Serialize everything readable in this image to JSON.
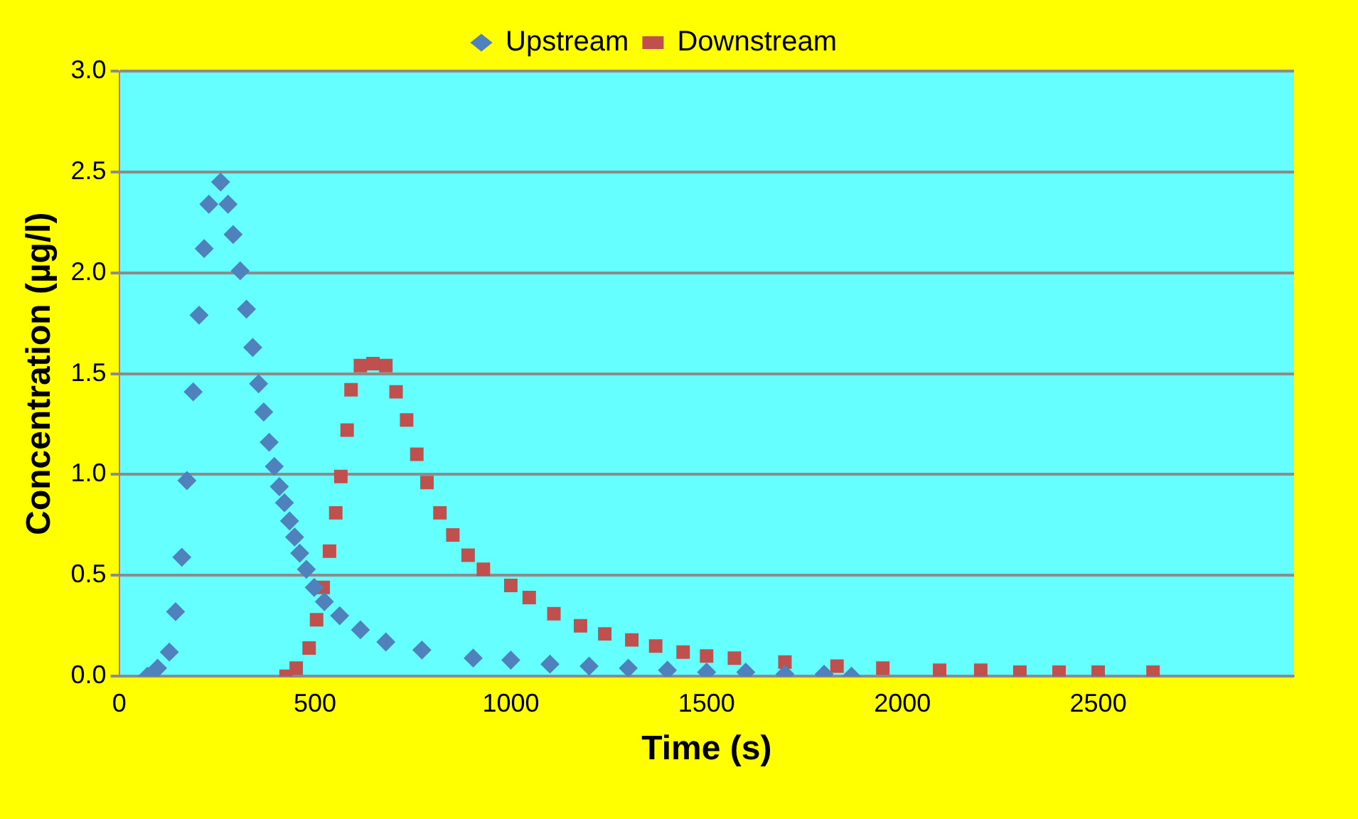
{
  "chart_data": {
    "type": "scatter",
    "xlabel": "Time (s)",
    "ylabel": "Concentration (µg/l)",
    "xlim": [
      0,
      3000
    ],
    "xticks": [
      0,
      500,
      1000,
      1500,
      2000,
      2500
    ],
    "ylim": [
      0,
      3
    ],
    "yticks": [
      {
        "value": 0,
        "label": "0.0"
      },
      0.5,
      {
        "value": 1,
        "label": "1.0"
      },
      1.5,
      {
        "value": 2,
        "label": "2.0"
      },
      2.5,
      {
        "value": 3,
        "label": "3.0"
      }
    ],
    "grid": "y",
    "legend": "top",
    "series": [
      {
        "name": "Upstream",
        "color": "#4f81bd",
        "marker": "diamond",
        "x": [
          72,
          98,
          128,
          144,
          160,
          173,
          189,
          204,
          217,
          229,
          259,
          278,
          291,
          309,
          325,
          341,
          356,
          369,
          383,
          396,
          409,
          422,
          435,
          448,
          461,
          478,
          498,
          524,
          563,
          616,
          681,
          773,
          904,
          1000,
          1100,
          1200,
          1300,
          1400,
          1500,
          1600,
          1700,
          1800,
          1870
        ],
        "values": [
          0,
          0.04,
          0.12,
          0.32,
          0.59,
          0.97,
          1.41,
          1.79,
          2.12,
          2.34,
          2.45,
          2.34,
          2.19,
          2.01,
          1.82,
          1.63,
          1.45,
          1.31,
          1.16,
          1.04,
          0.94,
          0.86,
          0.77,
          0.69,
          0.61,
          0.53,
          0.44,
          0.37,
          0.3,
          0.23,
          0.17,
          0.13,
          0.09,
          0.08,
          0.06,
          0.05,
          0.04,
          0.03,
          0.02,
          0.02,
          0.01,
          0.01,
          0
        ]
      },
      {
        "name": "Downstream",
        "color": "#c0504d",
        "marker": "square",
        "x": [
          426,
          452,
          485,
          504,
          521,
          537,
          553,
          566,
          582,
          592,
          616,
          648,
          681,
          707,
          734,
          760,
          786,
          819,
          852,
          891,
          930,
          1000,
          1047,
          1110,
          1178,
          1240,
          1309,
          1370,
          1440,
          1500,
          1571,
          1700,
          1833,
          1950,
          2095,
          2200,
          2300,
          2400,
          2500,
          2640
        ],
        "values": [
          0,
          0.04,
          0.14,
          0.28,
          0.44,
          0.62,
          0.81,
          0.99,
          1.22,
          1.42,
          1.54,
          1.55,
          1.54,
          1.41,
          1.27,
          1.1,
          0.96,
          0.81,
          0.7,
          0.6,
          0.53,
          0.45,
          0.39,
          0.31,
          0.25,
          0.21,
          0.18,
          0.15,
          0.12,
          0.1,
          0.09,
          0.07,
          0.05,
          0.04,
          0.03,
          0.03,
          0.02,
          0.02,
          0.02,
          0.02
        ]
      }
    ]
  }
}
